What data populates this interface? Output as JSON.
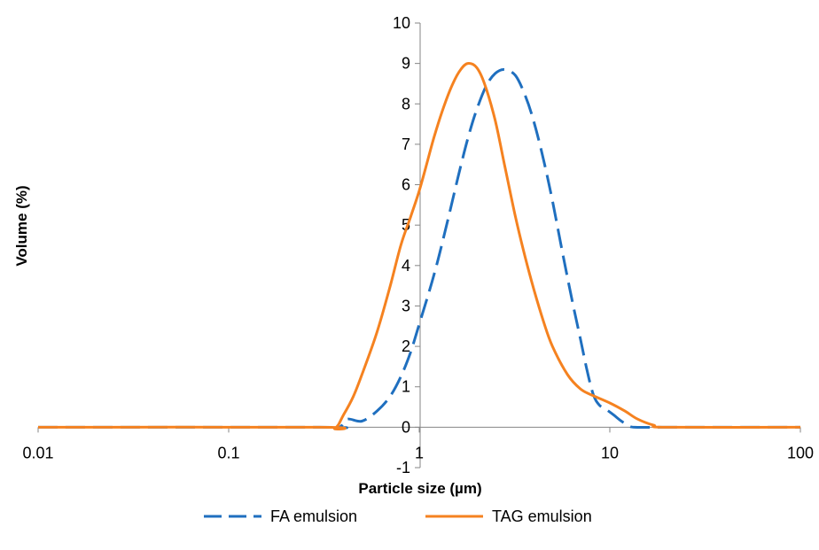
{
  "chart_data": {
    "type": "line",
    "xlabel": "Particle size (µm)",
    "ylabel": "Volume  (%)",
    "x_scale": "log",
    "xlim": [
      0.01,
      100
    ],
    "ylim": [
      -1,
      10
    ],
    "x_ticks": [
      0.01,
      0.1,
      1,
      10,
      100
    ],
    "x_tick_labels": [
      "0.01",
      "0.1",
      "1",
      "10",
      "100"
    ],
    "y_ticks": [
      -1,
      0,
      1,
      2,
      3,
      4,
      5,
      6,
      7,
      8,
      9,
      10
    ],
    "y_tick_labels": [
      "-1",
      "0",
      "1",
      "2",
      "3",
      "4",
      "5",
      "6",
      "7",
      "8",
      "9",
      "10"
    ],
    "grid": false,
    "legend_position": "bottom",
    "series": [
      {
        "name": "FA emulsion",
        "color": "#1f6fbf",
        "dash": "dashed",
        "points": [
          [
            0.01,
            0
          ],
          [
            0.3,
            0
          ],
          [
            0.38,
            0
          ],
          [
            0.42,
            0.2
          ],
          [
            0.5,
            0.15
          ],
          [
            0.6,
            0.4
          ],
          [
            0.7,
            0.75
          ],
          [
            0.8,
            1.25
          ],
          [
            0.9,
            1.85
          ],
          [
            1.0,
            2.55
          ],
          [
            1.2,
            3.8
          ],
          [
            1.4,
            5.05
          ],
          [
            1.6,
            6.2
          ],
          [
            1.8,
            7.15
          ],
          [
            2.0,
            7.85
          ],
          [
            2.25,
            8.45
          ],
          [
            2.5,
            8.75
          ],
          [
            2.8,
            8.85
          ],
          [
            3.2,
            8.7
          ],
          [
            3.6,
            8.2
          ],
          [
            4.0,
            7.55
          ],
          [
            4.5,
            6.6
          ],
          [
            5.0,
            5.6
          ],
          [
            5.6,
            4.4
          ],
          [
            6.3,
            3.2
          ],
          [
            7.0,
            2.2
          ],
          [
            7.6,
            1.4
          ],
          [
            8.2,
            0.8
          ],
          [
            8.8,
            0.55
          ],
          [
            9.5,
            0.45
          ],
          [
            10.5,
            0.3
          ],
          [
            11.5,
            0.15
          ],
          [
            12.5,
            0.05
          ],
          [
            13.5,
            0
          ],
          [
            20,
            0
          ],
          [
            100,
            0
          ]
        ]
      },
      {
        "name": "TAG emulsion",
        "color": "#f58220",
        "dash": "solid",
        "points": [
          [
            0.01,
            0
          ],
          [
            0.3,
            0
          ],
          [
            0.36,
            -0.03
          ],
          [
            0.4,
            0.3
          ],
          [
            0.45,
            0.75
          ],
          [
            0.5,
            1.3
          ],
          [
            0.6,
            2.35
          ],
          [
            0.7,
            3.45
          ],
          [
            0.8,
            4.5
          ],
          [
            0.9,
            5.2
          ],
          [
            1.0,
            5.85
          ],
          [
            1.1,
            6.55
          ],
          [
            1.2,
            7.2
          ],
          [
            1.35,
            7.95
          ],
          [
            1.5,
            8.5
          ],
          [
            1.65,
            8.85
          ],
          [
            1.8,
            9.0
          ],
          [
            2.0,
            8.9
          ],
          [
            2.2,
            8.5
          ],
          [
            2.5,
            7.6
          ],
          [
            2.8,
            6.5
          ],
          [
            3.2,
            5.2
          ],
          [
            3.6,
            4.2
          ],
          [
            4.0,
            3.4
          ],
          [
            4.5,
            2.6
          ],
          [
            5.0,
            2.0
          ],
          [
            6.0,
            1.3
          ],
          [
            7.0,
            0.95
          ],
          [
            8.0,
            0.8
          ],
          [
            10.0,
            0.6
          ],
          [
            12.0,
            0.4
          ],
          [
            14.0,
            0.2
          ],
          [
            17.0,
            0.05
          ],
          [
            20.0,
            0
          ],
          [
            100,
            0
          ]
        ]
      }
    ]
  }
}
